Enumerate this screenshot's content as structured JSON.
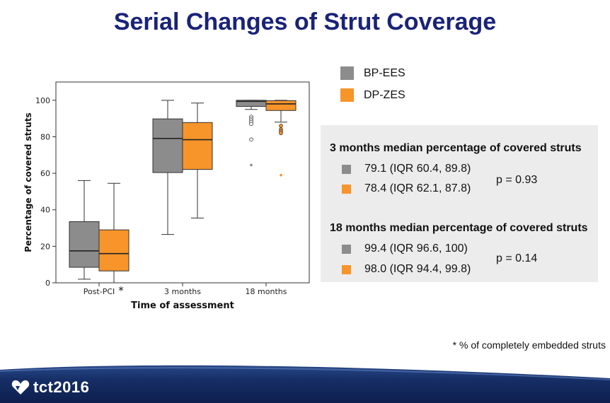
{
  "title": "Serial Changes of Strut Coverage",
  "colors": {
    "bp_ees": "#8c8c8c",
    "dp_zes": "#f7942a",
    "title": "#1a2378"
  },
  "chart_data": {
    "type": "box",
    "title": "",
    "xlabel": "Time of assessment",
    "ylabel": "Percentage of covered struts",
    "ylim": [
      0,
      110
    ],
    "yticks": [
      0,
      20,
      40,
      60,
      80,
      100
    ],
    "categories": [
      "Post-PCI",
      "3 months",
      "18 months"
    ],
    "asterisk": "*",
    "series": [
      {
        "name": "BP-EES",
        "color": "#8c8c8c",
        "boxes": [
          {
            "min": 2,
            "q1": 8.5,
            "median": 17.5,
            "q3": 33.5,
            "max": 56,
            "outliers": []
          },
          {
            "min": 26.5,
            "q1": 60.4,
            "median": 79.1,
            "q3": 89.8,
            "max": 100,
            "outliers": []
          },
          {
            "min": 95,
            "q1": 96.6,
            "median": 99.4,
            "q3": 100,
            "max": 100,
            "outliers": [
              91,
              90,
              89,
              88,
              87,
              78.5,
              64.5
            ]
          }
        ]
      },
      {
        "name": "DP-ZES",
        "color": "#f7942a",
        "boxes": [
          {
            "min": 0,
            "q1": 6.5,
            "median": 16,
            "q3": 29,
            "max": 54.5,
            "outliers": []
          },
          {
            "min": 35.5,
            "q1": 62.1,
            "median": 78.4,
            "q3": 87.8,
            "max": 98.5,
            "outliers": []
          },
          {
            "min": 88,
            "q1": 94.4,
            "median": 98,
            "q3": 99.8,
            "max": 100,
            "outliers": [
              86,
              84,
              83,
              82,
              59
            ]
          }
        ]
      }
    ]
  },
  "legend": [
    {
      "label": "BP-EES",
      "color": "#8c8c8c"
    },
    {
      "label": "DP-ZES",
      "color": "#f7942a"
    }
  ],
  "stats": {
    "m3": {
      "heading": "3 months median percentage of covered struts",
      "bp_text": "79.1 (IQR 60.4, 89.8)",
      "dp_text": "78.4 (IQR 62.1, 87.8)",
      "pvalue": "p = 0.93"
    },
    "m18": {
      "heading": "18 months median percentage of covered struts",
      "bp_text": "99.4 (IQR 96.6, 100)",
      "dp_text": "98.0 (IQR 94.4, 99.8)",
      "pvalue": "p = 0.14"
    }
  },
  "footnote": "* % of completely embedded struts",
  "footer": {
    "logo": "tct2016"
  }
}
